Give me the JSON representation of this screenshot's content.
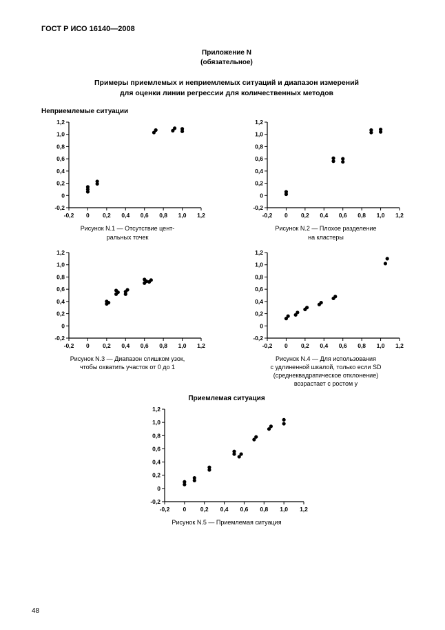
{
  "doc": {
    "header": "ГОСТ Р ИСО 16140—2008",
    "annex_label": "Приложение N",
    "annex_mandatory": "(обязательное)",
    "title_line1": "Примеры приемлемых и неприемлемых ситуаций и диапазон измерений",
    "title_line2": "для оценки линии регрессии для количественных методов",
    "unacceptable_label": "Неприемлемые ситуации",
    "acceptable_label": "Приемлемая ситуация",
    "page": "48"
  },
  "axis": {
    "yticks": [
      -0.2,
      0,
      0.2,
      0.4,
      0.6,
      0.8,
      1.0,
      1.2
    ],
    "xticks": [
      -0.2,
      0,
      0.2,
      0.4,
      0.6,
      0.8,
      1.0,
      1.2
    ],
    "ylim": [
      -0.2,
      1.2
    ],
    "xlim": [
      -0.2,
      1.2
    ]
  },
  "style": {
    "bg": "#ffffff",
    "axis_color": "#000000",
    "marker_color": "#000000",
    "marker_r": 2.6,
    "font_color": "#000000"
  },
  "charts": {
    "n1": {
      "caption_l1": "Рисунок N.1 — Отсутствие цент-",
      "caption_l2": "ральных точек",
      "points": [
        [
          0.0,
          0.06
        ],
        [
          0.0,
          0.1
        ],
        [
          0.0,
          0.14
        ],
        [
          0.1,
          0.19
        ],
        [
          0.1,
          0.23
        ],
        [
          0.7,
          1.03
        ],
        [
          0.72,
          1.07
        ],
        [
          0.9,
          1.06
        ],
        [
          0.92,
          1.1
        ],
        [
          1.0,
          1.05
        ],
        [
          1.0,
          1.09
        ]
      ]
    },
    "n2": {
      "caption_l1": "Рисунок N.2 — Плохое разделение",
      "caption_l2": "на кластеры",
      "points": [
        [
          0.0,
          0.02
        ],
        [
          0.0,
          0.06
        ],
        [
          0.5,
          0.56
        ],
        [
          0.5,
          0.61
        ],
        [
          0.6,
          0.55
        ],
        [
          0.6,
          0.6
        ],
        [
          0.9,
          1.03
        ],
        [
          0.9,
          1.07
        ],
        [
          1.0,
          1.04
        ],
        [
          1.0,
          1.08
        ]
      ]
    },
    "n3": {
      "caption_l1": "Рисунок N.3 — Диапазон слишком узок,",
      "caption_l2": "чтобы охватить участок от 0 до 1",
      "points": [
        [
          0.2,
          0.36
        ],
        [
          0.2,
          0.4
        ],
        [
          0.22,
          0.38
        ],
        [
          0.3,
          0.52
        ],
        [
          0.32,
          0.55
        ],
        [
          0.3,
          0.58
        ],
        [
          0.4,
          0.52
        ],
        [
          0.4,
          0.56
        ],
        [
          0.42,
          0.59
        ],
        [
          0.6,
          0.7
        ],
        [
          0.62,
          0.73
        ],
        [
          0.6,
          0.76
        ],
        [
          0.65,
          0.72
        ],
        [
          0.67,
          0.75
        ]
      ]
    },
    "n4": {
      "caption_l1": "Рисунок N.4 — Для использования",
      "caption_l2": "с удлиненной шкалой, только если  SD",
      "caption_l3": "(среднеквадратическое   отклонение)",
      "caption_l4": "возрастает с ростом y",
      "points": [
        [
          0.0,
          0.12
        ],
        [
          0.02,
          0.16
        ],
        [
          0.1,
          0.18
        ],
        [
          0.12,
          0.22
        ],
        [
          0.2,
          0.27
        ],
        [
          0.22,
          0.3
        ],
        [
          0.35,
          0.35
        ],
        [
          0.37,
          0.38
        ],
        [
          0.5,
          0.45
        ],
        [
          0.52,
          0.48
        ],
        [
          1.05,
          1.02
        ],
        [
          1.07,
          1.1
        ]
      ]
    },
    "n5": {
      "caption": "Рисунок N.5 — Приемлемая ситуация",
      "points": [
        [
          0.0,
          0.06
        ],
        [
          0.0,
          0.1
        ],
        [
          0.1,
          0.12
        ],
        [
          0.1,
          0.16
        ],
        [
          0.25,
          0.28
        ],
        [
          0.25,
          0.32
        ],
        [
          0.5,
          0.52
        ],
        [
          0.5,
          0.56
        ],
        [
          0.55,
          0.48
        ],
        [
          0.57,
          0.52
        ],
        [
          0.7,
          0.74
        ],
        [
          0.72,
          0.78
        ],
        [
          0.85,
          0.9
        ],
        [
          0.87,
          0.94
        ],
        [
          1.0,
          0.98
        ],
        [
          1.0,
          1.04
        ]
      ]
    }
  }
}
